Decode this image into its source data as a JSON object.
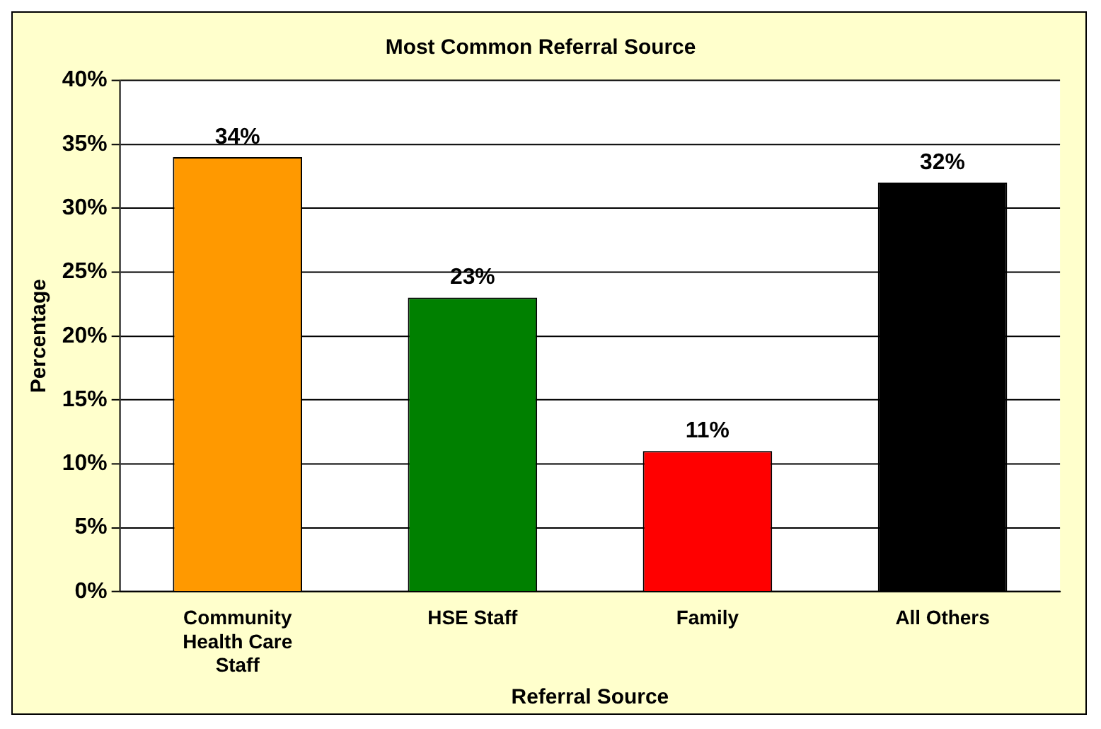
{
  "chart_data": {
    "type": "bar",
    "title": "Most Common Referral Source",
    "xlabel": "Referral Source",
    "ylabel": "Percentage",
    "categories": [
      "Community Health Care Staff",
      "HSE Staff",
      "Family",
      "All Others"
    ],
    "values": [
      34,
      23,
      11,
      32
    ],
    "colors": [
      "#ff9900",
      "#008000",
      "#ff0000",
      "#000000"
    ],
    "value_labels": [
      "34%",
      "23%",
      "11%",
      "32%"
    ],
    "ylim": [
      0,
      40
    ],
    "yticks": [
      {
        "value": 0,
        "label": "0%"
      },
      {
        "value": 5,
        "label": "5%"
      },
      {
        "value": 10,
        "label": "10%"
      },
      {
        "value": 15,
        "label": "15%"
      },
      {
        "value": 20,
        "label": "20%"
      },
      {
        "value": 25,
        "label": "25%"
      },
      {
        "value": 30,
        "label": "30%"
      },
      {
        "value": 35,
        "label": "35%"
      },
      {
        "value": 40,
        "label": "40%"
      }
    ],
    "grid": "y",
    "legend": false
  }
}
